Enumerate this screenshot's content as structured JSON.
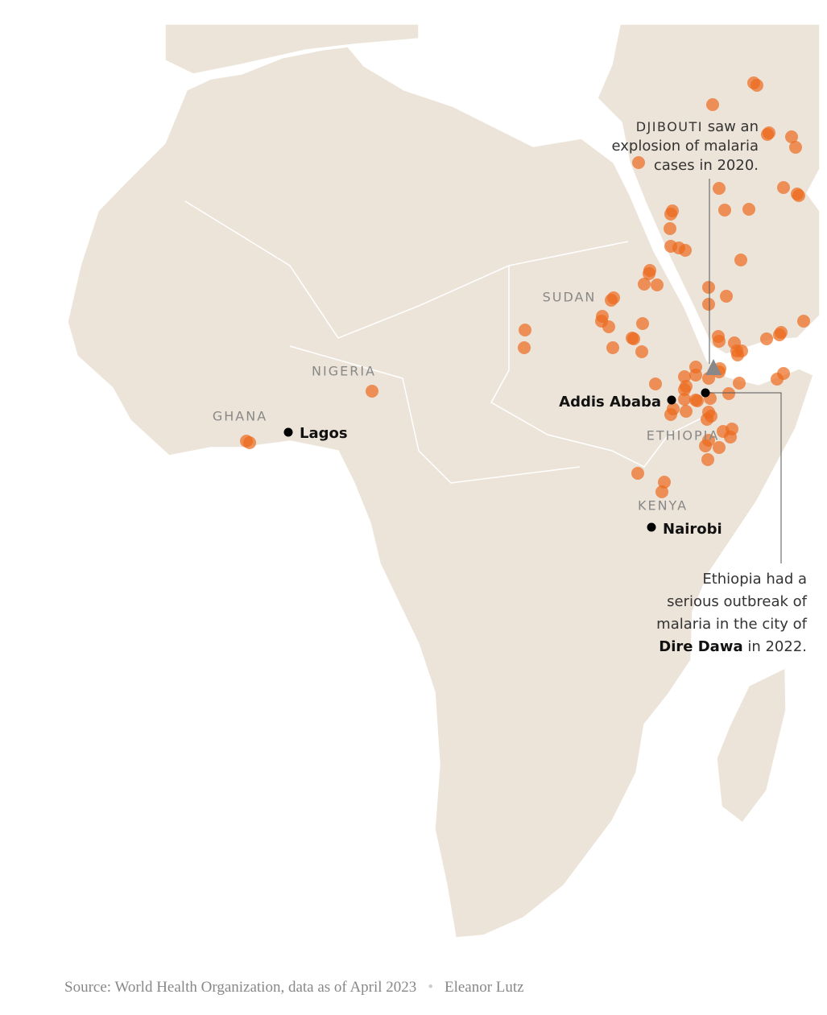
{
  "map": {
    "country_labels": [
      "SUDAN",
      "NIGERIA",
      "GHANA",
      "ETHIOPIA",
      "KENYA"
    ],
    "cities": [
      "Lagos",
      "Addis Ababa",
      "Nairobi"
    ],
    "annotations": [
      {
        "lines": [
          [
            "DJIBOUTI",
            " saw an"
          ],
          [
            "explosion of malaria"
          ],
          [
            "cases in 2020."
          ]
        ]
      },
      {
        "lines": [
          [
            "Ethiopia had a"
          ],
          [
            "serious outbreak of"
          ],
          [
            "malaria in the city of"
          ],
          [
            "Dire Dawa",
            " in 2022."
          ]
        ]
      }
    ]
  },
  "footer": {
    "source": "Source: World Health Organization, data as of April 2023",
    "credit": "Eleanor Lutz"
  }
}
